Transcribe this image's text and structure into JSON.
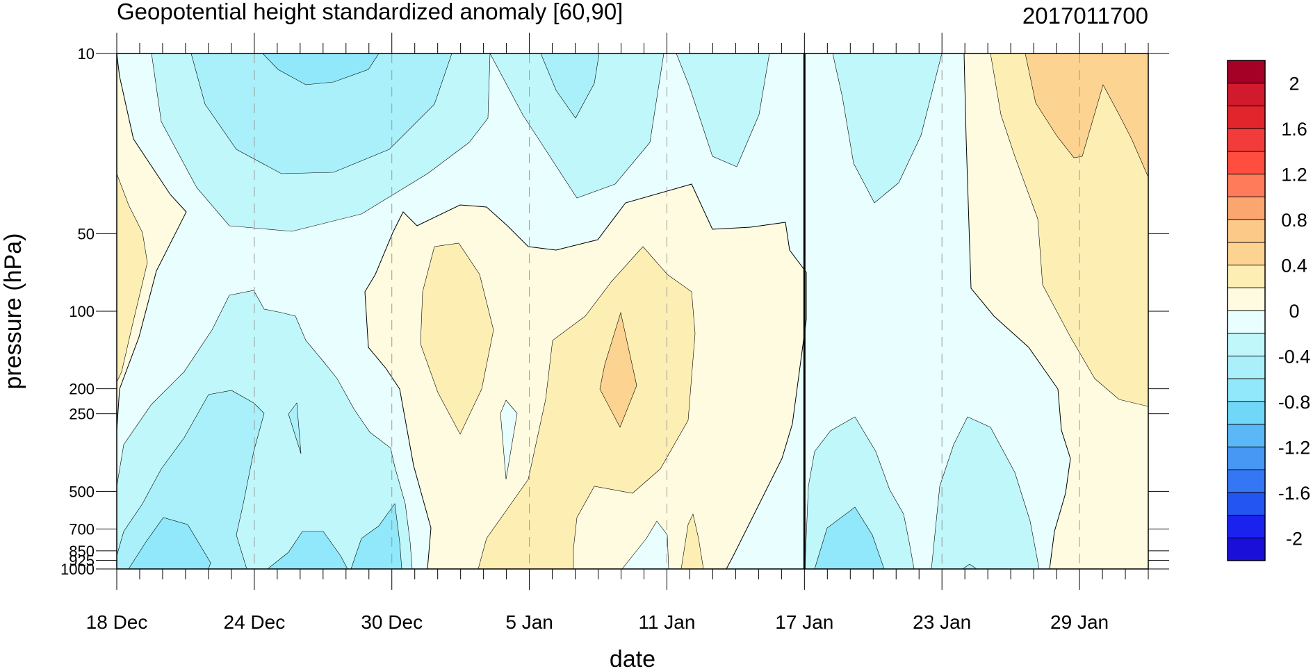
{
  "chart_data": {
    "type": "heatmap",
    "title": "Geopotential height standardized anomaly [60,90]",
    "right_title": "2017011700",
    "xlabel": "date",
    "ylabel": "pressure (hPa)",
    "x_tick_labels": [
      "18 Dec",
      "24 Dec",
      "30 Dec",
      "5 Jan",
      "11 Jan",
      "17 Jan",
      "23 Jan",
      "29 Jan"
    ],
    "x_tick_days": [
      0,
      6,
      12,
      18,
      24,
      30,
      36,
      42
    ],
    "x_range_days": [
      0,
      45
    ],
    "current_day": 30,
    "y_levels": [
      10,
      50,
      100,
      200,
      250,
      500,
      700,
      850,
      925,
      1000
    ],
    "y_tick_labels": [
      "10",
      "50",
      "100",
      "200",
      "250",
      "500",
      "700",
      "850",
      "925",
      "1000"
    ],
    "y_range": [
      10,
      1000
    ],
    "y_scale": "log",
    "contour_levels": [
      -2.2,
      -2.0,
      -1.8,
      -1.6,
      -1.4,
      -1.2,
      -1.0,
      -0.8,
      -0.6,
      -0.4,
      -0.2,
      0,
      0.2,
      0.4,
      0.6,
      0.8,
      1.0,
      1.2,
      1.4,
      1.6,
      1.8,
      2.0,
      2.2
    ],
    "colorbar_labels": [
      "2",
      "1.6",
      "1.2",
      "0.8",
      "0.4",
      "0",
      "-0.4",
      "-0.8",
      "-1.2",
      "-1.6",
      "-2"
    ],
    "colorbar_colors": [
      "#a50026",
      "#d11a2b",
      "#e2242d",
      "#f23c3c",
      "#ff4d40",
      "#ff7b5a",
      "#fba66f",
      "#fdc989",
      "#fdd392",
      "#fdefb3",
      "#fefbe0",
      "#e8feff",
      "#c0f7fb",
      "#a9f0fb",
      "#90e8fa",
      "#70d7f9",
      "#5ab8f6",
      "#4797f4",
      "#3476f3",
      "#2255f2",
      "#1b22f0",
      "#1a0fd9"
    ]
  }
}
